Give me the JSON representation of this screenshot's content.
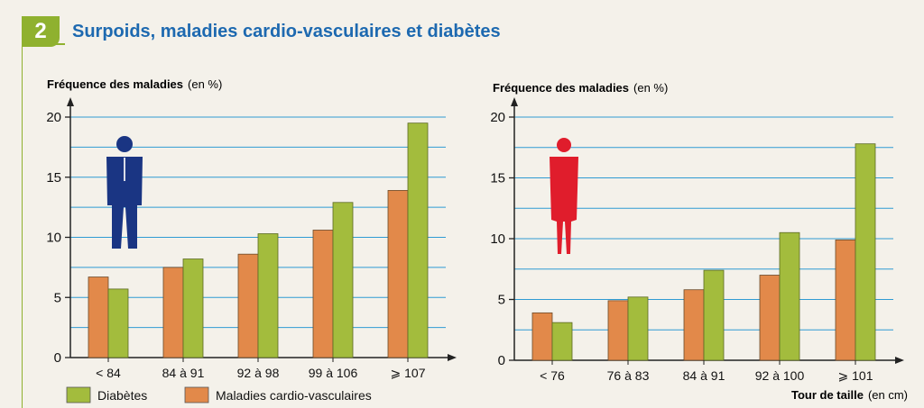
{
  "header": {
    "number": "2",
    "title": "Surpoids, maladies cardio-vasculaires et diabètes"
  },
  "legend": {
    "items": [
      {
        "label": "Diabètes",
        "color": "#a3bc3d"
      },
      {
        "label": "Maladies cardio-vasculaires",
        "color": "#e2894a"
      }
    ]
  },
  "colors": {
    "diabetes": "#a3bc3d",
    "cardio": "#e2894a",
    "grid": "#2f9bd3",
    "man_icon": "#1a3583",
    "woman_icon": "#e01d2c"
  },
  "chart_data": [
    {
      "type": "bar",
      "figure": "man-icon",
      "ylabel": "Fréquence des maladies",
      "ylabel_unit": "(en %)",
      "xlabel": "",
      "xlabel_unit": "",
      "ylim": [
        0,
        20
      ],
      "yticks": [
        0,
        5,
        10,
        15,
        20
      ],
      "categories": [
        "< 84",
        "84 à 91",
        "92 à 98",
        "99 à 106",
        "⩾ 107"
      ],
      "series": [
        {
          "name": "Maladies cardio-vasculaires",
          "values": [
            6.7,
            7.5,
            8.6,
            10.6,
            13.9
          ]
        },
        {
          "name": "Diabètes",
          "values": [
            5.7,
            8.2,
            10.3,
            12.9,
            19.5
          ]
        }
      ],
      "grid": true
    },
    {
      "type": "bar",
      "figure": "woman-icon",
      "ylabel": "Fréquence des maladies",
      "ylabel_unit": "(en %)",
      "xlabel": "Tour de taille",
      "xlabel_unit": "(en cm)",
      "ylim": [
        0,
        20
      ],
      "yticks": [
        0,
        5,
        10,
        15,
        20
      ],
      "categories": [
        "< 76",
        "76 à 83",
        "84 à 91",
        "92 à 100",
        "⩾ 101"
      ],
      "series": [
        {
          "name": "Maladies cardio-vasculaires",
          "values": [
            3.9,
            4.9,
            5.8,
            7.0,
            9.9
          ]
        },
        {
          "name": "Diabètes",
          "values": [
            3.1,
            5.2,
            7.4,
            10.5,
            17.8
          ]
        }
      ],
      "grid": true
    }
  ]
}
